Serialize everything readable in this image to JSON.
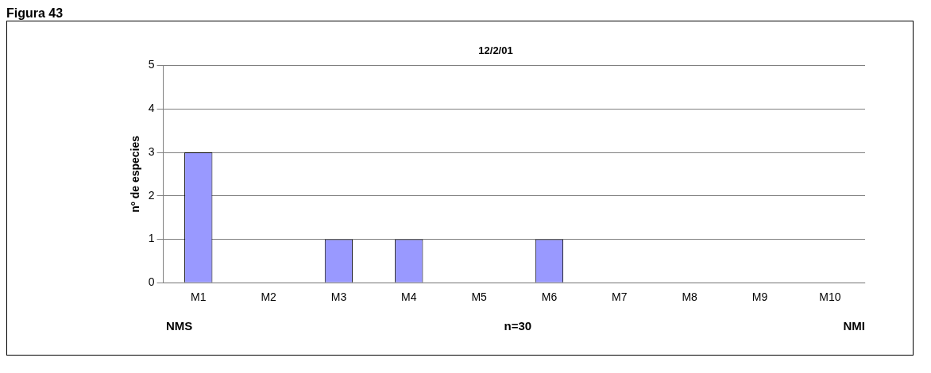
{
  "chart_data": {
    "type": "bar",
    "title": "12/2/01",
    "ylabel": "nº de especies",
    "categories": [
      "M1",
      "M2",
      "M3",
      "M4",
      "M5",
      "M6",
      "M7",
      "M8",
      "M9",
      "M10"
    ],
    "values": [
      3,
      0,
      1,
      1,
      0,
      1,
      0,
      0,
      0,
      0
    ],
    "color": "#9999ff",
    "ylim": [
      0,
      5
    ],
    "yticks": [
      0,
      1,
      2,
      3,
      4,
      5
    ],
    "grid": "y",
    "legend": false,
    "annotations": [
      "Figura 43",
      "NMS",
      "n=30",
      "NMI"
    ]
  }
}
